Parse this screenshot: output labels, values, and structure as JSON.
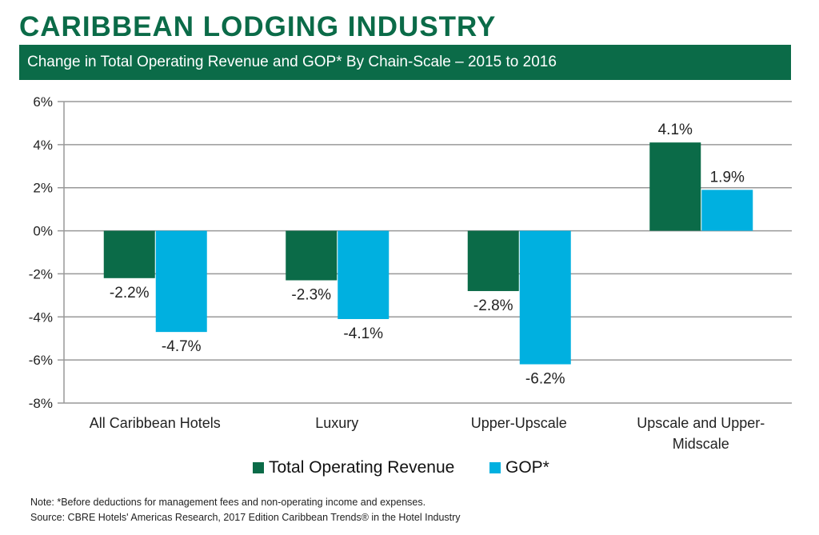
{
  "header": {
    "title": "CARIBBEAN LODGING INDUSTRY",
    "subtitle": "Change in Total Operating Revenue and GOP* By Chain-Scale – 2015 to 2016"
  },
  "chart_data": {
    "type": "bar",
    "categories": [
      [
        "All Caribbean Hotels"
      ],
      [
        "Luxury"
      ],
      [
        "Upper-Upscale"
      ],
      [
        "Upscale and Upper-",
        "Midscale"
      ]
    ],
    "series": [
      {
        "name": "Total Operating Revenue",
        "color": "#0b6b48",
        "values": [
          -2.2,
          -2.3,
          -2.8,
          4.1
        ],
        "labels": [
          "-2.2%",
          "-2.3%",
          "-2.8%",
          "4.1%"
        ]
      },
      {
        "name": "GOP*",
        "color": "#00b0e0",
        "values": [
          -4.7,
          -4.1,
          -6.2,
          1.9
        ],
        "labels": [
          "-4.7%",
          "-4.1%",
          "-6.2%",
          "1.9%"
        ]
      }
    ],
    "ylim": [
      -8,
      6
    ],
    "yticks": [
      6,
      4,
      2,
      0,
      -2,
      -4,
      -6,
      -8
    ],
    "ytick_labels": [
      "6%",
      "4%",
      "2%",
      "0%",
      "-2%",
      "-4%",
      "-6%",
      "-8%"
    ],
    "grid": true,
    "legend": "bottom"
  },
  "footer": {
    "note": "Note: *Before deductions for management fees and non-operating income and expenses.",
    "source": "Source: CBRE Hotels' Americas Research, 2017 Edition Caribbean Trends® in the Hotel Industry"
  }
}
